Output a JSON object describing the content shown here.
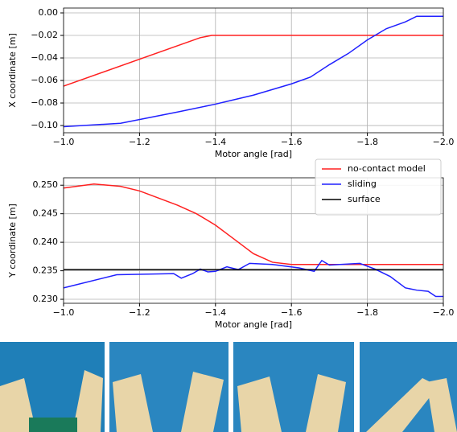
{
  "chart_data": [
    {
      "type": "line",
      "x_label": "Motor angle [rad]",
      "y_label": "X coordinate [m]",
      "xlim": [
        -1.0,
        -2.0
      ],
      "ylim": [
        -0.1064,
        0.0043
      ],
      "grid": true,
      "xticks": [
        {
          "value": -1.0,
          "label": "−1.0"
        },
        {
          "value": -1.2,
          "label": "−1.2"
        },
        {
          "value": -1.4,
          "label": "−1.4"
        },
        {
          "value": -1.6,
          "label": "−1.6"
        },
        {
          "value": -1.8,
          "label": "−1.8"
        },
        {
          "value": -2.0,
          "label": "−2.0"
        }
      ],
      "yticks": [
        {
          "value": 0.0,
          "label": "0.00"
        },
        {
          "value": -0.02,
          "label": "−0.02"
        },
        {
          "value": -0.04,
          "label": "−0.04"
        },
        {
          "value": -0.06,
          "label": "−0.06"
        },
        {
          "value": -0.08,
          "label": "−0.08"
        },
        {
          "value": -0.1,
          "label": "−0.10"
        }
      ],
      "series": [
        {
          "color": "#ff2020",
          "x": [
            -1.0,
            -1.36,
            -1.39,
            -2.0
          ],
          "values": [
            -0.065,
            -0.022,
            -0.02,
            -0.02
          ]
        },
        {
          "color": "#2020ff",
          "x": [
            -1.0,
            -1.15,
            -1.3,
            -1.4,
            -1.5,
            -1.6,
            -1.65,
            -1.7,
            -1.75,
            -1.8,
            -1.85,
            -1.9,
            -1.93,
            -2.0
          ],
          "values": [
            -0.101,
            -0.098,
            -0.088,
            -0.081,
            -0.073,
            -0.063,
            -0.057,
            -0.046,
            -0.036,
            -0.024,
            -0.014,
            -0.008,
            -0.003,
            -0.003
          ]
        }
      ]
    },
    {
      "type": "line",
      "x_label": "Motor angle [rad]",
      "y_label": "Y coordinate [m]",
      "xlim": [
        -1.0,
        -2.0
      ],
      "ylim": [
        0.2293,
        0.2513
      ],
      "grid": true,
      "legend": "upper right",
      "xticks": [
        {
          "value": -1.0,
          "label": "−1.0"
        },
        {
          "value": -1.2,
          "label": "−1.2"
        },
        {
          "value": -1.4,
          "label": "−1.4"
        },
        {
          "value": -1.6,
          "label": "−1.6"
        },
        {
          "value": -1.8,
          "label": "−1.8"
        },
        {
          "value": -2.0,
          "label": "−2.0"
        }
      ],
      "yticks": [
        {
          "value": 0.25,
          "label": "0.250"
        },
        {
          "value": 0.245,
          "label": "0.245"
        },
        {
          "value": 0.24,
          "label": "0.240"
        },
        {
          "value": 0.235,
          "label": "0.235"
        },
        {
          "value": 0.23,
          "label": "0.230"
        }
      ],
      "series": [
        {
          "name": "no-contact model",
          "color": "#ff2020",
          "x": [
            -1.0,
            -1.08,
            -1.15,
            -1.2,
            -1.3,
            -1.35,
            -1.4,
            -1.45,
            -1.5,
            -1.55,
            -1.6,
            -2.0
          ],
          "values": [
            0.2495,
            0.2502,
            0.2498,
            0.249,
            0.2465,
            0.245,
            0.243,
            0.2405,
            0.238,
            0.2365,
            0.2361,
            0.2361
          ]
        },
        {
          "name": "sliding",
          "color": "#2020ff",
          "x": [
            -1.0,
            -1.14,
            -1.29,
            -1.31,
            -1.34,
            -1.36,
            -1.38,
            -1.4,
            -1.43,
            -1.46,
            -1.49,
            -1.55,
            -1.62,
            -1.66,
            -1.68,
            -1.7,
            -1.78,
            -1.82,
            -1.86,
            -1.9,
            -1.93,
            -1.96,
            -1.98,
            -2.0
          ],
          "values": [
            0.232,
            0.2343,
            0.2345,
            0.2337,
            0.2345,
            0.2353,
            0.2348,
            0.2349,
            0.2357,
            0.2352,
            0.2363,
            0.2361,
            0.2355,
            0.2349,
            0.2368,
            0.236,
            0.2363,
            0.2353,
            0.234,
            0.232,
            0.2316,
            0.2314,
            0.2305,
            0.2305
          ]
        },
        {
          "name": "surface",
          "color": "#000000",
          "x": [
            -1.0,
            -2.0
          ],
          "values": [
            0.2352,
            0.2352
          ]
        }
      ]
    }
  ]
}
